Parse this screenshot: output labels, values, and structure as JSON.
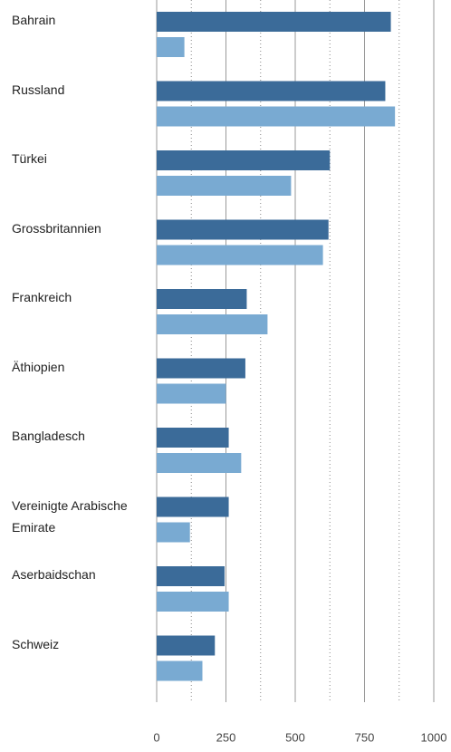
{
  "chart_data": {
    "type": "barh",
    "categories": [
      "Bahrain",
      "Russland",
      "Türkei",
      "Grossbritannien",
      "Frankreich",
      "Äthiopien",
      "Bangladesch",
      "Vereinigte Arabische Emirate",
      "Aserbaidschan",
      "Schweiz"
    ],
    "series": [
      {
        "color": "#3b6b99",
        "values": [
          845,
          825,
          625,
          620,
          325,
          320,
          260,
          260,
          245,
          210
        ]
      },
      {
        "color": "#79aad2",
        "values": [
          100,
          860,
          485,
          600,
          400,
          250,
          305,
          120,
          260,
          165
        ]
      }
    ],
    "xlim": [
      0,
      1000
    ],
    "xticks": [
      0,
      250,
      500,
      750,
      1000
    ],
    "minor_xticks": [
      125,
      375,
      625,
      875
    ],
    "grid": true
  }
}
